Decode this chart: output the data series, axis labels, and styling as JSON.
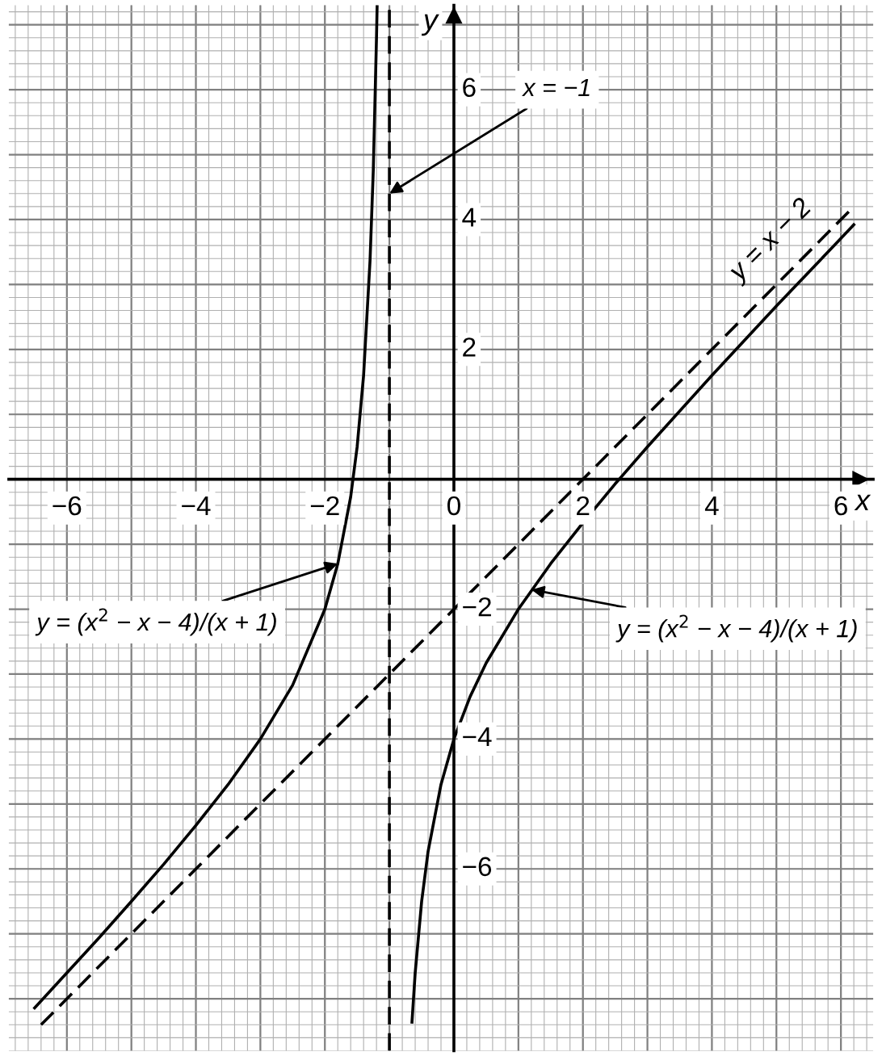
{
  "chart_data": {
    "type": "line",
    "xlabel": "x",
    "ylabel": "y",
    "xlim": [
      -6.9,
      6.5
    ],
    "ylim": [
      -8.8,
      7.3
    ],
    "xticks": [
      -6,
      -4,
      -2,
      0,
      2,
      4,
      6
    ],
    "yticks": [
      -6,
      -4,
      -2,
      2,
      4,
      6
    ],
    "grid": true,
    "series": [
      {
        "color": "#000000",
        "line_style": "solid",
        "x": [
          -6.5,
          -6,
          -5.5,
          -5,
          -4.5,
          -4,
          -3.5,
          -3,
          -2.5,
          -2,
          -1.8,
          -1.6,
          -1.5,
          -1.4,
          -1.3,
          -1.25,
          -1.2,
          -1.19
        ],
        "values": [
          -8.14,
          -7.6,
          -7.06,
          -6.5,
          -5.93,
          -5.33,
          -4.7,
          -4,
          -3.17,
          -2,
          -1.3,
          -0.27,
          0.5,
          1.6,
          3.37,
          4.75,
          6.8,
          7.3
        ]
      },
      {
        "color": "#000000",
        "line_style": "solid",
        "x": [
          -0.65,
          -0.6,
          -0.5,
          -0.4,
          -0.2,
          0,
          0.25,
          0.5,
          1,
          1.5,
          2,
          2.5,
          3,
          4,
          5,
          6,
          6.2
        ],
        "values": [
          -8.36,
          -7.6,
          -6.5,
          -5.73,
          -4.7,
          -4,
          -3.35,
          -2.83,
          -2,
          -1.3,
          -0.67,
          -0.07,
          0.5,
          1.6,
          2.67,
          3.71,
          3.92
        ]
      },
      {
        "color": "#000000",
        "line_style": "dashed",
        "x": [
          -6.4,
          6.2
        ],
        "values": [
          -8.4,
          4.2
        ]
      }
    ],
    "ref_lines": [
      {
        "axis": "x",
        "value": -1,
        "color": "#000000",
        "line_style": "dashed"
      }
    ],
    "annotations": [
      {
        "text": "x = −1",
        "x": -1,
        "y": 4.4
      },
      {
        "text": "y = x − 2",
        "x": 5.3,
        "y": 3.3
      },
      {
        "text": "y = (x$^{2}$ − x − 4)/(x + 1)",
        "x": -1.8,
        "y": -1.3
      },
      {
        "text": "y = (x$^{2}$ − x − 4)/(x + 1)",
        "x": 1.2,
        "y": -1.7
      }
    ]
  }
}
